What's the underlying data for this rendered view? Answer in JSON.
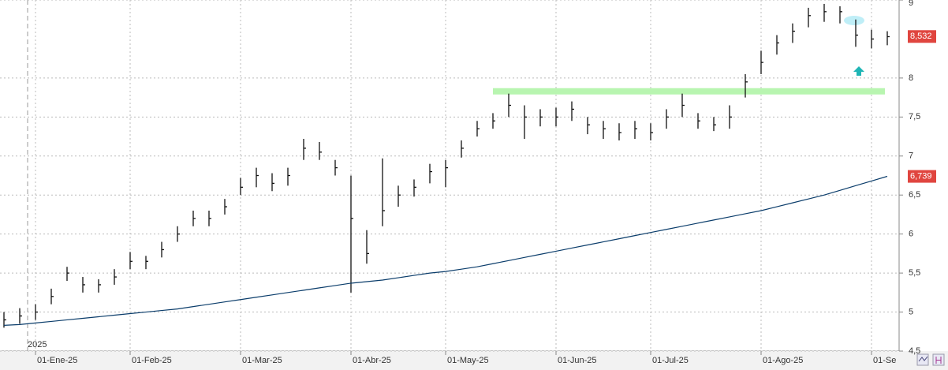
{
  "chart_data": {
    "type": "ohlc",
    "categories": [
      null,
      null,
      "01-Ene-25",
      null,
      null,
      null,
      null,
      null,
      "01-Feb-25",
      null,
      null,
      null,
      null,
      null,
      null,
      "01-Mar-25",
      null,
      null,
      null,
      null,
      null,
      null,
      "01-Abr-25",
      null,
      null,
      null,
      null,
      null,
      "01-May-25",
      null,
      null,
      null,
      null,
      null,
      null,
      "01-Jun-25",
      null,
      null,
      null,
      null,
      null,
      "01-Jul-25",
      null,
      null,
      null,
      null,
      null,
      null,
      "01-Ago-25",
      null,
      null,
      null,
      null,
      null,
      null,
      "01-Se",
      null
    ],
    "year_label": "2025",
    "series": [
      {
        "color": "#111111",
        "values": [
          4.9,
          4.95,
          5.0,
          5.2,
          5.5,
          5.35,
          5.35,
          5.45,
          5.65,
          5.65,
          5.8,
          6.0,
          6.2,
          6.2,
          6.35,
          6.6,
          6.75,
          6.65,
          6.75,
          7.1,
          7.05,
          6.85,
          6.2,
          5.75,
          6.3,
          6.5,
          6.6,
          6.8,
          6.85,
          7.1,
          7.35,
          7.45,
          7.65,
          7.5,
          7.5,
          7.5,
          7.6,
          7.4,
          7.35,
          7.3,
          7.35,
          7.3,
          7.5,
          7.65,
          7.45,
          7.4,
          7.5,
          7.95,
          8.2,
          8.45,
          8.6,
          8.8,
          8.85,
          8.85,
          8.55,
          8.5,
          8.53
        ],
        "high": [
          5.0,
          5.05,
          5.1,
          5.3,
          5.58,
          5.45,
          5.42,
          5.55,
          5.77,
          5.72,
          5.9,
          6.1,
          6.3,
          6.3,
          6.45,
          6.72,
          6.85,
          6.78,
          6.85,
          7.22,
          7.18,
          6.95,
          6.75,
          6.05,
          6.97,
          6.62,
          6.7,
          6.9,
          6.95,
          7.2,
          7.45,
          7.55,
          7.8,
          7.65,
          7.6,
          7.62,
          7.7,
          7.5,
          7.45,
          7.42,
          7.45,
          7.42,
          7.6,
          7.8,
          7.55,
          7.5,
          7.65,
          8.05,
          8.35,
          8.55,
          8.7,
          8.9,
          8.95,
          8.92,
          8.75,
          8.62,
          8.6
        ],
        "low": [
          4.8,
          4.85,
          4.9,
          5.1,
          5.4,
          5.25,
          5.25,
          5.35,
          5.55,
          5.55,
          5.7,
          5.9,
          6.1,
          6.1,
          6.25,
          6.5,
          6.6,
          6.55,
          6.62,
          6.95,
          6.95,
          6.75,
          5.25,
          5.62,
          6.1,
          6.35,
          6.48,
          6.65,
          6.6,
          6.98,
          7.25,
          7.35,
          7.5,
          7.22,
          7.38,
          7.38,
          7.45,
          7.28,
          7.22,
          7.2,
          7.22,
          7.2,
          7.35,
          7.5,
          7.35,
          7.32,
          7.35,
          7.75,
          8.05,
          8.3,
          8.45,
          8.65,
          8.72,
          8.7,
          8.4,
          8.38,
          8.42
        ]
      },
      {
        "type": "line",
        "color": "#0b3d6b",
        "values": [
          4.83,
          4.84,
          4.86,
          4.88,
          4.9,
          4.92,
          4.94,
          4.96,
          4.98,
          5.0,
          5.02,
          5.04,
          5.07,
          5.1,
          5.13,
          5.16,
          5.19,
          5.22,
          5.25,
          5.28,
          5.31,
          5.34,
          5.37,
          5.39,
          5.41,
          5.44,
          5.47,
          5.5,
          5.52,
          5.55,
          5.58,
          5.62,
          5.66,
          5.7,
          5.74,
          5.78,
          5.82,
          5.86,
          5.9,
          5.94,
          5.98,
          6.02,
          6.06,
          6.1,
          6.14,
          6.18,
          6.22,
          6.26,
          6.3,
          6.35,
          6.4,
          6.45,
          6.5,
          6.56,
          6.62,
          6.68,
          6.74
        ]
      }
    ],
    "last_labels": [
      {
        "value": 8.532,
        "label": "8,532",
        "color": "#e0453f"
      },
      {
        "value": 6.739,
        "label": "6,739",
        "color": "#e0453f"
      }
    ],
    "hline": {
      "value": 7.83,
      "color": "#b8f5b0"
    },
    "ylim": [
      4.5,
      9
    ],
    "yticks": [
      {
        "value": 4.5,
        "label": "4,5"
      },
      5,
      {
        "value": 5.5,
        "label": "5,5"
      },
      6,
      {
        "value": 6.5,
        "label": "6,5"
      },
      7,
      {
        "value": 7.5,
        "label": "7,5"
      },
      8,
      9
    ],
    "grid": true
  }
}
